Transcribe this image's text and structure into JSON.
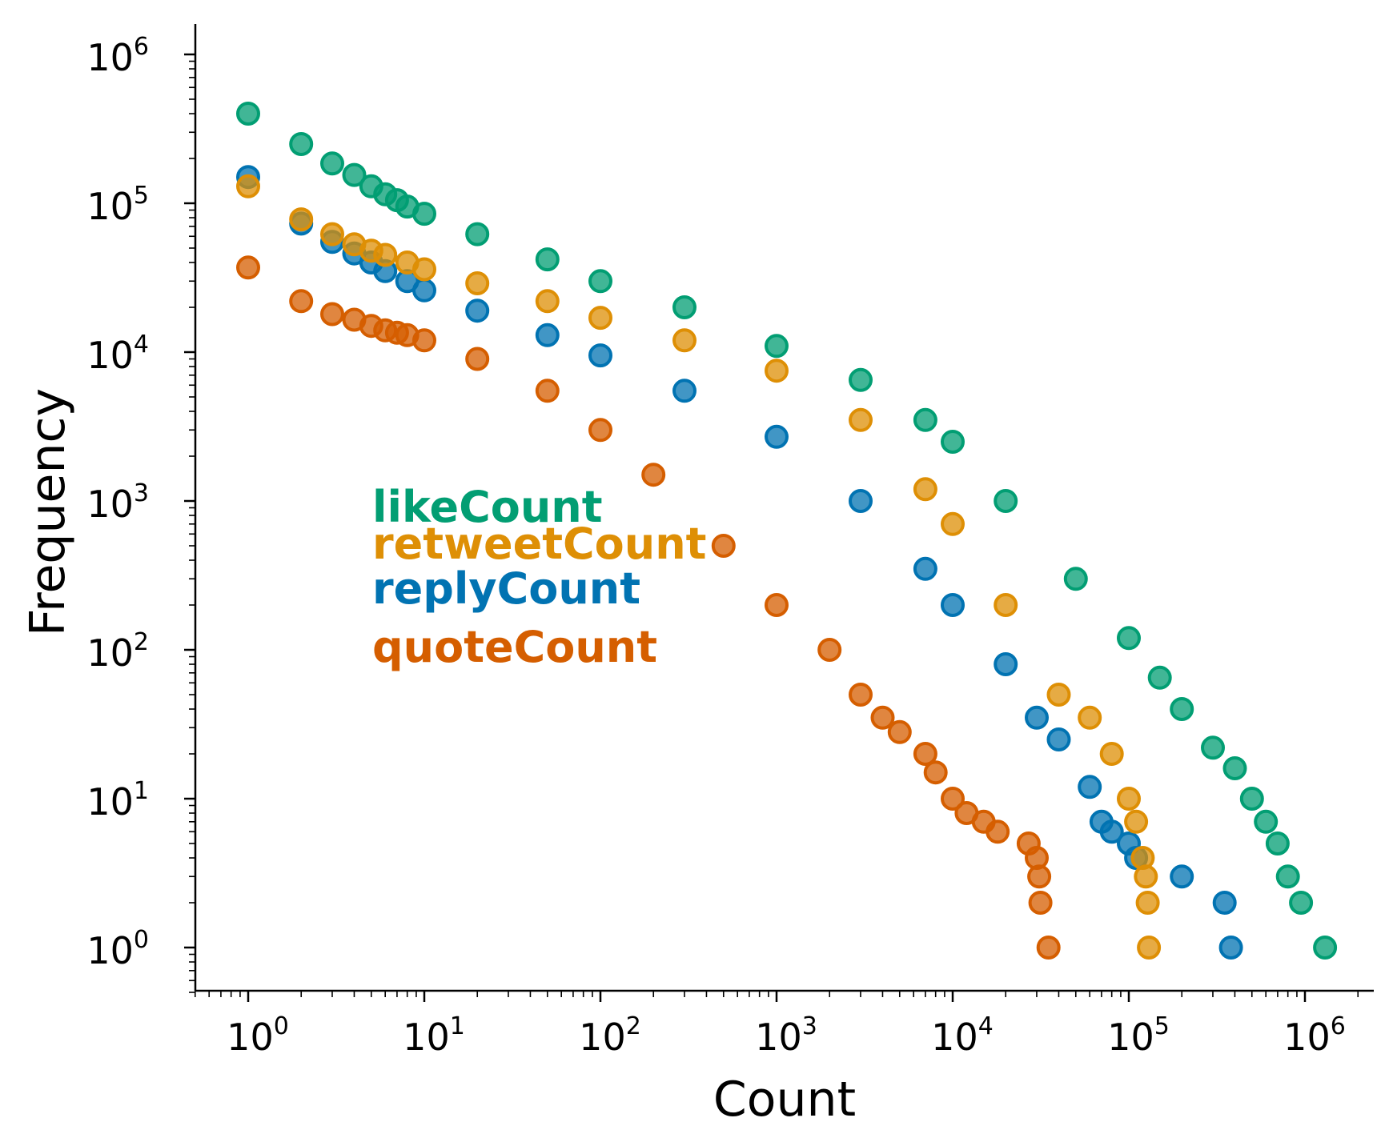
{
  "chart_data": {
    "type": "scatter",
    "title": "",
    "xlabel": "Count",
    "ylabel": "Frequency",
    "xscale": "log",
    "yscale": "log",
    "xlim": [
      0.5,
      2500000
    ],
    "ylim": [
      0.5,
      1500000
    ],
    "x_ticks": [
      {
        "base": "10",
        "exp": "0",
        "value": 1
      },
      {
        "base": "10",
        "exp": "1",
        "value": 10
      },
      {
        "base": "10",
        "exp": "2",
        "value": 100
      },
      {
        "base": "10",
        "exp": "3",
        "value": 1000
      },
      {
        "base": "10",
        "exp": "4",
        "value": 10000
      },
      {
        "base": "10",
        "exp": "5",
        "value": 100000
      },
      {
        "base": "10",
        "exp": "6",
        "value": 1000000
      }
    ],
    "y_ticks": [
      {
        "base": "10",
        "exp": "0",
        "value": 1
      },
      {
        "base": "10",
        "exp": "1",
        "value": 10
      },
      {
        "base": "10",
        "exp": "2",
        "value": 100
      },
      {
        "base": "10",
        "exp": "3",
        "value": 1000
      },
      {
        "base": "10",
        "exp": "4",
        "value": 10000
      },
      {
        "base": "10",
        "exp": "5",
        "value": 100000
      },
      {
        "base": "10",
        "exp": "6",
        "value": 1000000
      }
    ],
    "legend_placement": "center-left",
    "series": [
      {
        "name": "likeCount",
        "color": "#029e73",
        "x": [
          1,
          2,
          3,
          4,
          5,
          6,
          7,
          8,
          10,
          20,
          50,
          100,
          300,
          1000,
          3000,
          7000,
          10000,
          20000,
          50000,
          100000,
          150000,
          200000,
          300000,
          400000,
          500000,
          600000,
          700000,
          800000,
          950000,
          1300000
        ],
        "y": [
          400000,
          250000,
          185000,
          155000,
          130000,
          115000,
          105000,
          95000,
          85000,
          62000,
          42000,
          30000,
          20000,
          11000,
          6500,
          3500,
          2500,
          1000,
          300,
          120,
          65,
          40,
          22,
          16,
          10,
          7,
          5,
          3,
          2,
          1
        ]
      },
      {
        "name": "retweetCount",
        "color": "#de8f05",
        "x": [
          1,
          2,
          3,
          4,
          5,
          6,
          8,
          10,
          20,
          50,
          100,
          300,
          1000,
          3000,
          7000,
          10000,
          20000,
          40000,
          60000,
          80000,
          100000,
          110000,
          120000,
          125000,
          128000,
          130000
        ],
        "y": [
          130000,
          78000,
          62000,
          53000,
          48000,
          45000,
          40000,
          36000,
          29000,
          22000,
          17000,
          12000,
          7500,
          3500,
          1200,
          700,
          200,
          50,
          35,
          20,
          10,
          7,
          4,
          3,
          2,
          1
        ]
      },
      {
        "name": "replyCount",
        "color": "#0173b2",
        "x": [
          1,
          2,
          3,
          4,
          5,
          6,
          8,
          10,
          20,
          50,
          100,
          300,
          1000,
          3000,
          7000,
          10000,
          20000,
          30000,
          40000,
          60000,
          70000,
          80000,
          100000,
          110000,
          200000,
          350000,
          380000
        ],
        "y": [
          150000,
          73000,
          55000,
          46000,
          40000,
          35000,
          30000,
          26000,
          19000,
          13000,
          9500,
          5500,
          2700,
          1000,
          350,
          200,
          80,
          35,
          25,
          12,
          7,
          6,
          5,
          4,
          3,
          2,
          1
        ]
      },
      {
        "name": "quoteCount",
        "color": "#d55e00",
        "x": [
          1,
          2,
          3,
          4,
          5,
          6,
          7,
          8,
          10,
          20,
          50,
          100,
          200,
          500,
          1000,
          2000,
          3000,
          4000,
          5000,
          7000,
          8000,
          10000,
          12000,
          15000,
          18000,
          27000,
          30000,
          31000,
          31500,
          35000
        ],
        "y": [
          37000,
          22000,
          18000,
          16500,
          15000,
          14000,
          13500,
          13000,
          12000,
          9000,
          5500,
          3000,
          1500,
          500,
          200,
          100,
          50,
          35,
          28,
          20,
          15,
          10,
          8,
          7,
          6,
          5,
          4,
          3,
          2,
          1
        ]
      }
    ],
    "legend_order": [
      "likeCount",
      "retweetCount",
      "replyCount",
      "quoteCount"
    ]
  }
}
